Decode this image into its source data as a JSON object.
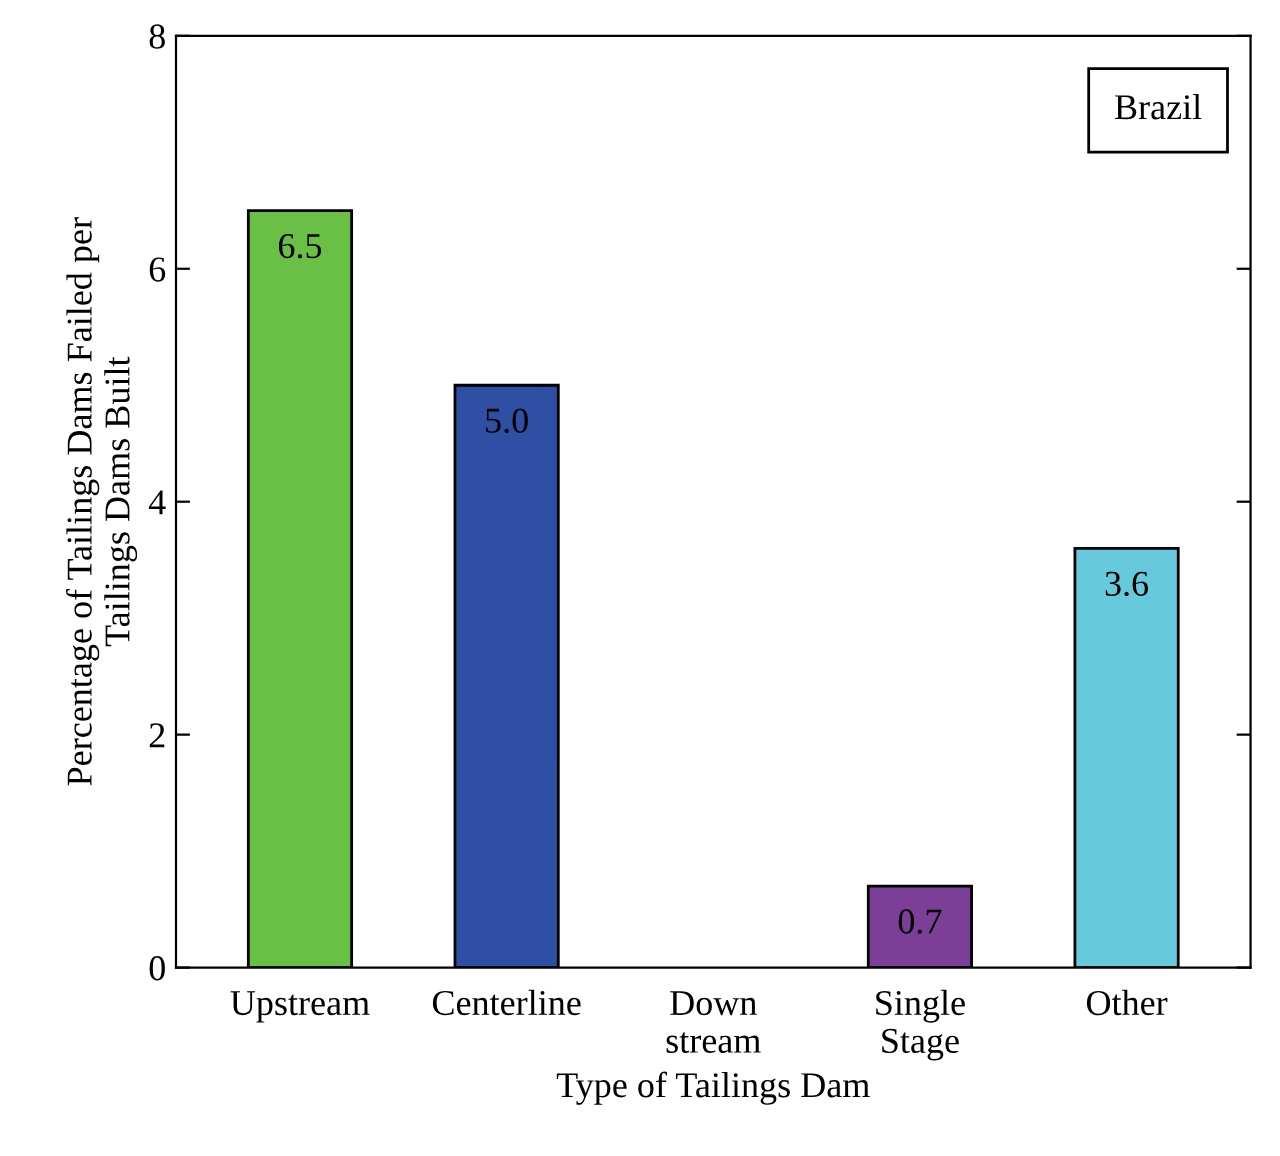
{
  "chart_data": {
    "type": "bar",
    "xlabel": "Type of Tailings Dam",
    "ylabel": "Percentage of Tailings Dams Failed per\nTailings Dams Built",
    "categories": [
      "Upstream",
      "Centerline",
      "Down\nstream",
      "Single\nStage",
      "Other"
    ],
    "values": [
      6.5,
      5.0,
      0,
      0.7,
      3.6
    ],
    "colors": [
      "#6abf45",
      "#2e4fa3",
      "#ffffff",
      "#7b3f98",
      "#66c9dc"
    ],
    "value_labels": [
      "6.5",
      "5.0",
      null,
      "0.7",
      "3.6"
    ],
    "ylim": [
      0,
      8
    ],
    "yticks": [
      0,
      2,
      4,
      6,
      8
    ],
    "annotations": [
      "Brazil"
    ],
    "grid": false,
    "legend": false
  }
}
